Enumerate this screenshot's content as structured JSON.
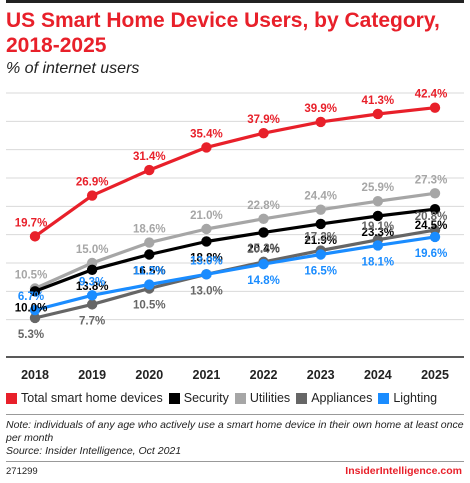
{
  "header": {
    "title": "US Smart Home Device Users, by Category, 2018-2025",
    "subtitle": "% of internet users"
  },
  "footer": {
    "note": "Note: individuals of any age who actively use a smart home device in their own home at least once per month",
    "source": "Source: Insider Intelligence, Oct 2021",
    "chart_id": "271299",
    "brand": "InsiderIntelligence.com"
  },
  "colors": {
    "total": "#e8202a",
    "security": "#000000",
    "utilities": "#a6a6a6",
    "appliances": "#666666",
    "lighting": "#1a8cff"
  },
  "chart_data": {
    "type": "line",
    "title": "US Smart Home Device Users, by Category, 2018-2025",
    "subtitle": "% of internet users",
    "x": [
      "2018",
      "2019",
      "2020",
      "2021",
      "2022",
      "2023",
      "2024",
      "2025"
    ],
    "ylim": [
      0,
      45
    ],
    "grid": true,
    "legend_position": "bottom",
    "series": [
      {
        "name": "Total smart home devices",
        "color": "#e8202a",
        "values": [
          19.7,
          26.9,
          31.4,
          35.4,
          37.9,
          39.9,
          41.3,
          42.4
        ],
        "labels": [
          "19.7%",
          "26.9%",
          "31.4%",
          "35.4%",
          "37.9%",
          "39.9%",
          "41.3%",
          "42.4%"
        ]
      },
      {
        "name": "Security",
        "color": "#000000",
        "values": [
          10.0,
          13.8,
          16.5,
          18.8,
          20.4,
          21.9,
          23.3,
          24.5
        ],
        "labels": [
          "10.0%",
          "13.8%",
          "16.5%",
          "18.8%",
          "20.4%",
          "21.9%",
          "23.3%",
          "24.5%"
        ]
      },
      {
        "name": "Utilities",
        "color": "#a6a6a6",
        "values": [
          10.5,
          15.0,
          18.6,
          21.0,
          22.8,
          24.4,
          25.9,
          27.3
        ],
        "labels": [
          "10.5%",
          "15.0%",
          "18.6%",
          "21.0%",
          "22.8%",
          "24.4%",
          "25.9%",
          "27.3%"
        ]
      },
      {
        "name": "Appliances",
        "color": "#666666",
        "values": [
          5.3,
          7.7,
          10.5,
          13.0,
          15.2,
          17.2,
          19.1,
          20.8
        ],
        "labels": [
          "5.3%",
          "7.7%",
          "10.5%",
          "13.0%",
          "15.2%",
          "17.2%",
          "19.1%",
          "20.8%"
        ]
      },
      {
        "name": "Lighting",
        "color": "#1a8cff",
        "values": [
          6.7,
          9.3,
          11.2,
          13.0,
          14.8,
          16.5,
          18.1,
          19.6
        ],
        "labels": [
          "6.7%",
          "9.3%",
          "11.2%",
          "13.0%",
          "14.8%",
          "16.5%",
          "18.1%",
          "19.6%"
        ]
      }
    ]
  }
}
